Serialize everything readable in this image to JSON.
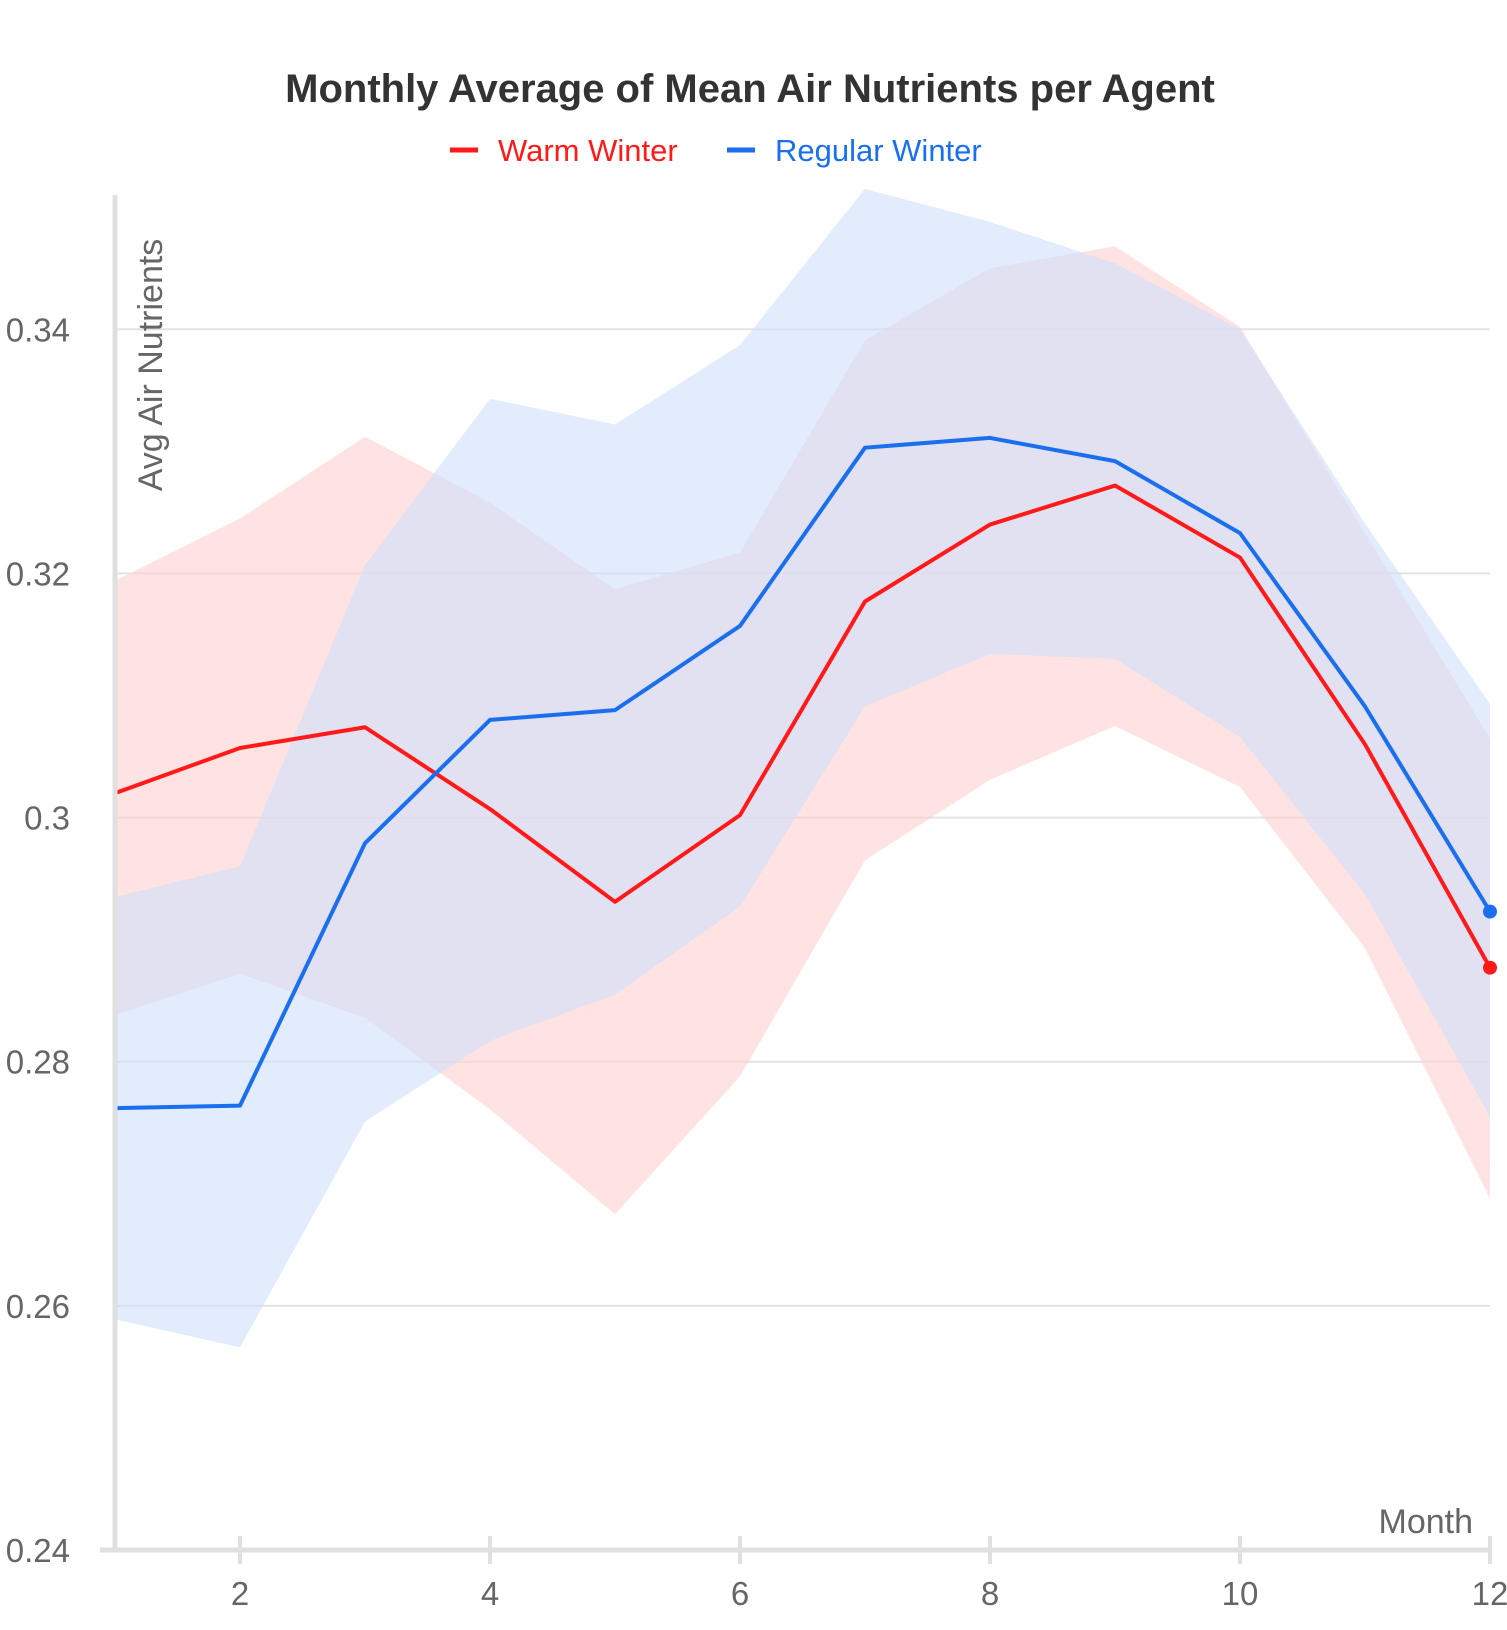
{
  "chart_data": {
    "type": "line",
    "title": "Monthly Average of Mean Air Nutrients per Agent",
    "xlabel": "Month",
    "ylabel": "Avg Air Nutrients",
    "xlim": [
      1,
      12
    ],
    "ylim": [
      0.24,
      0.351
    ],
    "x_ticks": [
      2,
      4,
      6,
      8,
      10,
      12
    ],
    "x_tick_labels": [
      "2",
      "4",
      "6",
      "8",
      "10",
      "12"
    ],
    "y_ticks": [
      0.24,
      0.26,
      0.28,
      0.3,
      0.32,
      0.34
    ],
    "y_tick_labels": [
      "0.24",
      "0.26",
      "0.28",
      "0.3",
      "0.32",
      "0.34"
    ],
    "grid": true,
    "legend_position": "top-center",
    "x": [
      1,
      2,
      3,
      4,
      5,
      6,
      7,
      8,
      9,
      10,
      11,
      12
    ],
    "series": [
      {
        "name": "Warm Winter",
        "color": "#ff1a1a",
        "band_color": "#ffd1d1",
        "values": [
          0.302,
          0.3057,
          0.3074,
          0.3007,
          0.2931,
          0.3002,
          0.3177,
          0.324,
          0.3272,
          0.3213,
          0.306,
          0.2877
        ],
        "upper": [
          0.3194,
          0.3245,
          0.3312,
          0.3258,
          0.3187,
          0.3217,
          0.3391,
          0.345,
          0.3468,
          0.3402,
          0.3233,
          0.3065
        ],
        "lower": [
          0.2838,
          0.2872,
          0.2836,
          0.2761,
          0.2675,
          0.2788,
          0.2965,
          0.3031,
          0.3075,
          0.3025,
          0.2893,
          0.2688
        ]
      },
      {
        "name": "Regular Winter",
        "color": "#1a6fef",
        "band_color": "#cfe0fb",
        "values": [
          0.2762,
          0.2764,
          0.2979,
          0.308,
          0.3088,
          0.3157,
          0.3303,
          0.3311,
          0.3292,
          0.3233,
          0.3091,
          0.2923
        ],
        "upper": [
          0.2935,
          0.296,
          0.3207,
          0.3343,
          0.3322,
          0.3387,
          0.3515,
          0.3488,
          0.3454,
          0.34,
          0.3241,
          0.3093
        ],
        "lower": [
          0.2589,
          0.2566,
          0.2751,
          0.2817,
          0.2855,
          0.2927,
          0.3091,
          0.3134,
          0.313,
          0.3066,
          0.2937,
          0.2755
        ]
      }
    ]
  }
}
